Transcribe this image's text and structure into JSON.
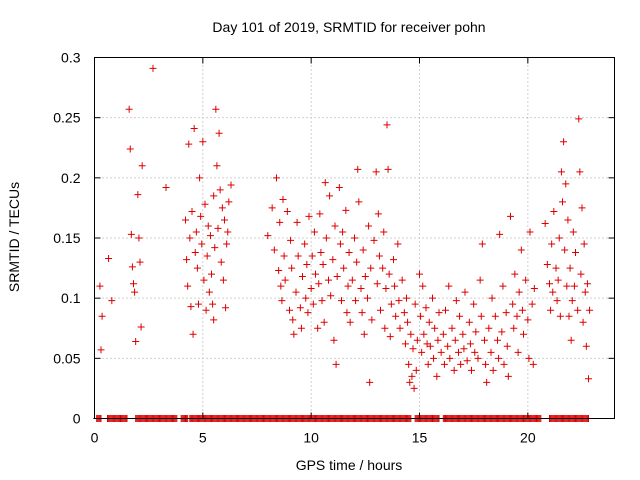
{
  "chart_data": {
    "type": "scatter",
    "title": "Day 101 of 2019, SRMTID for receiver pohn",
    "xlabel": "GPS time / hours",
    "ylabel": "SRMTID / TECUs",
    "xlim": [
      0,
      24
    ],
    "ylim": [
      0,
      0.3
    ],
    "x_ticks": [
      0,
      5,
      10,
      15,
      20
    ],
    "x_tick_labels": [
      "0",
      "5",
      "10",
      "15",
      "20"
    ],
    "y_ticks": [
      0,
      0.05,
      0.1,
      0.15,
      0.2,
      0.25,
      0.3
    ],
    "y_tick_labels": [
      "0",
      "0.05",
      "0.1",
      "0.15",
      "0.2",
      "0.25",
      "0.3"
    ],
    "grid": true,
    "marker": "+",
    "color": "#dd0000",
    "series": [
      {
        "name": "SRMTID",
        "points": [
          [
            0.25,
            0.11
          ],
          [
            0.3,
            0.057
          ],
          [
            0.35,
            0.085
          ],
          [
            0.65,
            0.133
          ],
          [
            0.8,
            0.098
          ],
          [
            1.6,
            0.257
          ],
          [
            1.65,
            0.224
          ],
          [
            1.7,
            0.153
          ],
          [
            1.75,
            0.126
          ],
          [
            1.8,
            0.112
          ],
          [
            1.85,
            0.105
          ],
          [
            1.9,
            0.064
          ],
          [
            2.0,
            0.186
          ],
          [
            2.05,
            0.15
          ],
          [
            2.1,
            0.13
          ],
          [
            2.15,
            0.076
          ],
          [
            2.2,
            0.21
          ],
          [
            2.7,
            0.291
          ],
          [
            3.3,
            0.192
          ],
          [
            4.2,
            0.165
          ],
          [
            4.25,
            0.132
          ],
          [
            4.3,
            0.11
          ],
          [
            4.35,
            0.228
          ],
          [
            4.4,
            0.15
          ],
          [
            4.45,
            0.093
          ],
          [
            4.5,
            0.172
          ],
          [
            4.55,
            0.07
          ],
          [
            4.6,
            0.241
          ],
          [
            4.65,
            0.138
          ],
          [
            4.7,
            0.155
          ],
          [
            4.75,
            0.125
          ],
          [
            4.8,
            0.095
          ],
          [
            4.85,
            0.2
          ],
          [
            4.9,
            0.168
          ],
          [
            4.95,
            0.145
          ],
          [
            5.0,
            0.23
          ],
          [
            5.05,
            0.115
          ],
          [
            5.1,
            0.178
          ],
          [
            5.15,
            0.09
          ],
          [
            5.2,
            0.135
          ],
          [
            5.25,
            0.16
          ],
          [
            5.3,
            0.105
          ],
          [
            5.35,
            0.152
          ],
          [
            5.4,
            0.12
          ],
          [
            5.5,
            0.185
          ],
          [
            5.55,
            0.142
          ],
          [
            5.6,
            0.257
          ],
          [
            5.65,
            0.21
          ],
          [
            5.7,
            0.158
          ],
          [
            5.75,
            0.237
          ],
          [
            5.8,
            0.19
          ],
          [
            5.85,
            0.13
          ],
          [
            5.9,
            0.175
          ],
          [
            5.95,
            0.115
          ],
          [
            6.0,
            0.165
          ],
          [
            6.05,
            0.092
          ],
          [
            6.1,
            0.145
          ],
          [
            6.15,
            0.155
          ],
          [
            6.2,
            0.18
          ],
          [
            6.3,
            0.194
          ],
          [
            5.45,
            0.095
          ],
          [
            5.5,
            0.082
          ],
          [
            8.0,
            0.152
          ],
          [
            8.2,
            0.175
          ],
          [
            8.3,
            0.14
          ],
          [
            8.4,
            0.2
          ],
          [
            8.5,
            0.123
          ],
          [
            8.55,
            0.163
          ],
          [
            8.6,
            0.11
          ],
          [
            8.65,
            0.098
          ],
          [
            8.7,
            0.182
          ],
          [
            8.75,
            0.135
          ],
          [
            8.8,
            0.115
          ],
          [
            8.9,
            0.172
          ],
          [
            9.0,
            0.09
          ],
          [
            9.05,
            0.148
          ],
          [
            9.1,
            0.125
          ],
          [
            9.15,
            0.082
          ],
          [
            9.2,
            0.07
          ],
          [
            9.3,
            0.105
          ],
          [
            9.35,
            0.163
          ],
          [
            9.4,
            0.135
          ],
          [
            9.5,
            0.092
          ],
          [
            9.55,
            0.075
          ],
          [
            9.6,
            0.118
          ],
          [
            9.7,
            0.145
          ],
          [
            9.75,
            0.1
          ],
          [
            9.8,
            0.128
          ],
          [
            9.85,
            0.088
          ],
          [
            9.9,
            0.168
          ],
          [
            10.0,
            0.108
          ],
          [
            10.05,
            0.135
          ],
          [
            10.1,
            0.095
          ],
          [
            10.15,
            0.155
          ],
          [
            10.2,
            0.12
          ],
          [
            10.3,
            0.075
          ],
          [
            10.35,
            0.112
          ],
          [
            10.4,
            0.17
          ],
          [
            10.45,
            0.138
          ],
          [
            10.5,
            0.098
          ],
          [
            10.55,
            0.128
          ],
          [
            10.6,
            0.08
          ],
          [
            10.65,
            0.196
          ],
          [
            10.7,
            0.15
          ],
          [
            10.8,
            0.115
          ],
          [
            10.85,
            0.185
          ],
          [
            10.9,
            0.102
          ],
          [
            11.0,
            0.132
          ],
          [
            11.05,
            0.065
          ],
          [
            11.1,
            0.16
          ],
          [
            11.15,
            0.045
          ],
          [
            11.2,
            0.118
          ],
          [
            11.3,
            0.192
          ],
          [
            11.35,
            0.145
          ],
          [
            11.4,
            0.098
          ],
          [
            11.45,
            0.155
          ],
          [
            11.5,
            0.125
          ],
          [
            11.6,
            0.173
          ],
          [
            11.65,
            0.088
          ],
          [
            11.7,
            0.11
          ],
          [
            11.75,
            0.138
          ],
          [
            11.8,
            0.08
          ],
          [
            11.9,
            0.115
          ],
          [
            12.0,
            0.15
          ],
          [
            12.05,
            0.098
          ],
          [
            12.1,
            0.13
          ],
          [
            12.15,
            0.207
          ],
          [
            12.2,
            0.18
          ],
          [
            12.3,
            0.108
          ],
          [
            12.35,
            0.088
          ],
          [
            12.4,
            0.14
          ],
          [
            12.45,
            0.07
          ],
          [
            12.5,
            0.118
          ],
          [
            12.6,
            0.1
          ],
          [
            12.65,
            0.16
          ],
          [
            12.7,
            0.03
          ],
          [
            12.75,
            0.125
          ],
          [
            12.8,
            0.082
          ],
          [
            12.9,
            0.148
          ],
          [
            13.0,
            0.205
          ],
          [
            13.05,
            0.112
          ],
          [
            13.1,
            0.17
          ],
          [
            13.15,
            0.135
          ],
          [
            13.2,
            0.09
          ],
          [
            13.3,
            0.125
          ],
          [
            13.35,
            0.155
          ],
          [
            13.4,
            0.075
          ],
          [
            13.45,
            0.108
          ],
          [
            13.5,
            0.244
          ],
          [
            13.55,
            0.207
          ],
          [
            13.6,
            0.12
          ],
          [
            13.65,
            0.068
          ],
          [
            13.7,
            0.095
          ],
          [
            13.8,
            0.132
          ],
          [
            13.85,
            0.11
          ],
          [
            13.9,
            0.085
          ],
          [
            14.0,
            0.145
          ],
          [
            14.05,
            0.098
          ],
          [
            14.1,
            0.075
          ],
          [
            14.2,
            0.115
          ],
          [
            14.3,
            0.088
          ],
          [
            14.35,
            0.062
          ],
          [
            14.4,
            0.1
          ],
          [
            14.45,
            0.08
          ],
          [
            14.5,
            0.045
          ],
          [
            14.55,
            0.03
          ],
          [
            14.6,
            0.07
          ],
          [
            14.65,
            0.035
          ],
          [
            14.7,
            0.058
          ],
          [
            14.75,
            0.025
          ],
          [
            14.8,
            0.095
          ],
          [
            14.85,
            0.04
          ],
          [
            14.9,
            0.065
          ],
          [
            15.0,
            0.12
          ],
          [
            15.05,
            0.085
          ],
          [
            15.1,
            0.055
          ],
          [
            15.15,
            0.11
          ],
          [
            15.2,
            0.07
          ],
          [
            15.3,
            0.092
          ],
          [
            15.35,
            0.062
          ],
          [
            15.4,
            0.045
          ],
          [
            15.45,
            0.08
          ],
          [
            15.5,
            0.06
          ],
          [
            15.6,
            0.1
          ],
          [
            15.65,
            0.05
          ],
          [
            15.7,
            0.075
          ],
          [
            15.8,
            0.035
          ],
          [
            15.85,
            0.065
          ],
          [
            15.9,
            0.088
          ],
          [
            16.0,
            0.055
          ],
          [
            16.1,
            0.07
          ],
          [
            16.15,
            0.045
          ],
          [
            16.2,
            0.09
          ],
          [
            16.3,
            0.06
          ],
          [
            16.35,
            0.11
          ],
          [
            16.4,
            0.05
          ],
          [
            16.5,
            0.075
          ],
          [
            16.6,
            0.04
          ],
          [
            16.65,
            0.065
          ],
          [
            16.7,
            0.098
          ],
          [
            16.8,
            0.055
          ],
          [
            16.85,
            0.085
          ],
          [
            16.9,
            0.045
          ],
          [
            17.0,
            0.07
          ],
          [
            17.05,
            0.058
          ],
          [
            17.1,
            0.105
          ],
          [
            17.2,
            0.048
          ],
          [
            17.3,
            0.08
          ],
          [
            17.35,
            0.062
          ],
          [
            17.4,
            0.04
          ],
          [
            17.5,
            0.095
          ],
          [
            17.55,
            0.055
          ],
          [
            17.6,
            0.072
          ],
          [
            17.7,
            0.05
          ],
          [
            17.8,
            0.115
          ],
          [
            17.85,
            0.085
          ],
          [
            17.9,
            0.145
          ],
          [
            18.0,
            0.065
          ],
          [
            18.05,
            0.045
          ],
          [
            18.1,
            0.03
          ],
          [
            18.2,
            0.075
          ],
          [
            18.3,
            0.055
          ],
          [
            18.35,
            0.1
          ],
          [
            18.4,
            0.04
          ],
          [
            18.5,
            0.085
          ],
          [
            18.6,
            0.065
          ],
          [
            18.65,
            0.05
          ],
          [
            18.7,
            0.153
          ],
          [
            18.8,
            0.072
          ],
          [
            18.85,
            0.11
          ],
          [
            18.9,
            0.045
          ],
          [
            19.0,
            0.088
          ],
          [
            19.05,
            0.06
          ],
          [
            19.1,
            0.035
          ],
          [
            19.2,
            0.168
          ],
          [
            19.3,
            0.095
          ],
          [
            19.35,
            0.075
          ],
          [
            19.4,
            0.12
          ],
          [
            19.5,
            0.085
          ],
          [
            19.55,
            0.055
          ],
          [
            19.6,
            0.105
          ],
          [
            19.7,
            0.14
          ],
          [
            19.75,
            0.09
          ],
          [
            19.8,
            0.07
          ],
          [
            19.9,
            0.115
          ],
          [
            20.0,
            0.082
          ],
          [
            20.05,
            0.05
          ],
          [
            20.1,
            0.155
          ],
          [
            20.2,
            0.095
          ],
          [
            20.25,
            0.045
          ],
          [
            20.3,
            0.108
          ],
          [
            20.8,
            0.162
          ],
          [
            20.9,
            0.128
          ],
          [
            21.0,
            0.112
          ],
          [
            21.05,
            0.09
          ],
          [
            21.1,
            0.145
          ],
          [
            21.15,
            0.105
          ],
          [
            21.2,
            0.172
          ],
          [
            21.3,
            0.125
          ],
          [
            21.35,
            0.098
          ],
          [
            21.4,
            0.115
          ],
          [
            21.45,
            0.15
          ],
          [
            21.5,
            0.085
          ],
          [
            21.55,
            0.205
          ],
          [
            21.6,
            0.18
          ],
          [
            21.65,
            0.23
          ],
          [
            21.7,
            0.14
          ],
          [
            21.75,
            0.195
          ],
          [
            21.8,
            0.11
          ],
          [
            21.85,
            0.165
          ],
          [
            21.9,
            0.085
          ],
          [
            21.95,
            0.125
          ],
          [
            22.0,
            0.065
          ],
          [
            22.05,
            0.098
          ],
          [
            22.1,
            0.155
          ],
          [
            22.15,
            0.11
          ],
          [
            22.2,
            0.138
          ],
          [
            22.3,
            0.09
          ],
          [
            22.35,
            0.249
          ],
          [
            22.4,
            0.205
          ],
          [
            22.45,
            0.12
          ],
          [
            22.5,
            0.175
          ],
          [
            22.55,
            0.08
          ],
          [
            22.6,
            0.145
          ],
          [
            22.65,
            0.105
          ],
          [
            22.7,
            0.06
          ],
          [
            22.75,
            0.112
          ],
          [
            22.8,
            0.033
          ],
          [
            22.85,
            0.09
          ]
        ]
      }
    ],
    "zero_marks_hour_ranges": [
      [
        0.1,
        0.3
      ],
      [
        0.6,
        1.5
      ],
      [
        1.9,
        3.8
      ],
      [
        4.0,
        4.3
      ],
      [
        4.4,
        14.6
      ],
      [
        14.8,
        15.9
      ],
      [
        16.1,
        20.6
      ],
      [
        21.0,
        22.8
      ]
    ]
  }
}
